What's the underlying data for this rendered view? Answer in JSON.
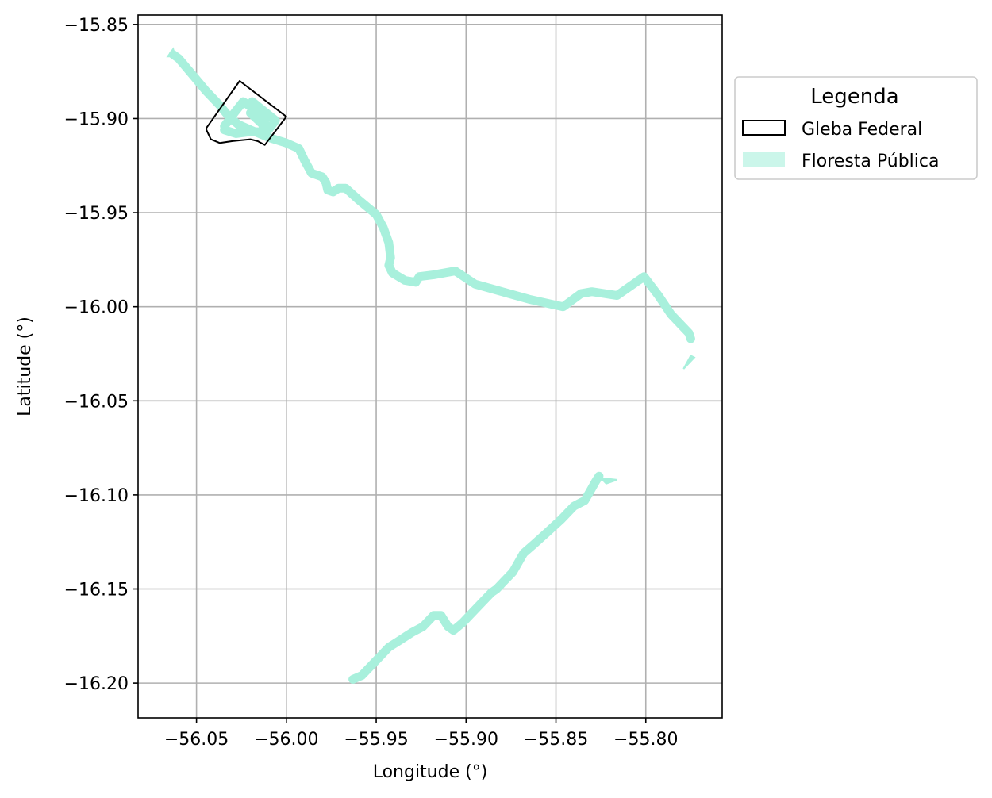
{
  "chart_data": {
    "type": "map",
    "xlabel": "Longitude (°)",
    "ylabel": "Latitude (°)",
    "xlim": [
      -56.0825,
      -55.7575
    ],
    "ylim": [
      -16.2185,
      -15.845
    ],
    "xticks": [
      -56.05,
      -56.0,
      -55.95,
      -55.9,
      -55.85,
      -55.8
    ],
    "yticks": [
      -15.85,
      -15.9,
      -15.95,
      -16.0,
      -16.05,
      -16.1,
      -16.15,
      -16.2
    ],
    "grid": true,
    "legend": {
      "title": "Legenda",
      "placement": "outside-upper-right",
      "entries": [
        {
          "label": "Gleba Federal",
          "style": "polygon-outline",
          "color": "#000000"
        },
        {
          "label": "Floresta Pública",
          "style": "fill",
          "color": "#a8f0dc"
        }
      ]
    },
    "layers": [
      {
        "name": "Gleba Federal",
        "kind": "polygon",
        "stroke": "#000000",
        "coordinates": [
          [
            -56.026,
            -15.88
          ],
          [
            -56.0,
            -15.899
          ],
          [
            -56.012,
            -15.914
          ],
          [
            -56.016,
            -15.912
          ],
          [
            -56.02,
            -15.911
          ],
          [
            -56.03,
            -15.912
          ],
          [
            -56.037,
            -15.913
          ],
          [
            -56.042,
            -15.911
          ],
          [
            -56.0445,
            -15.906
          ],
          [
            -56.0445,
            -15.905
          ]
        ]
      },
      {
        "name": "Floresta Pública",
        "kind": "line-polygons",
        "color": "#a8f0dc",
        "segments": [
          [
            [
              -56.063,
              -15.866
            ],
            [
              -56.06,
              -15.868
            ],
            [
              -56.052,
              -15.877
            ],
            [
              -56.045,
              -15.885
            ],
            [
              -56.037,
              -15.893
            ],
            [
              -56.032,
              -15.899
            ],
            [
              -56.027,
              -15.903
            ],
            [
              -56.02,
              -15.906
            ],
            [
              -56.01,
              -15.91
            ],
            [
              -56.0,
              -15.913
            ],
            [
              -55.993,
              -15.916
            ],
            [
              -55.99,
              -15.922
            ],
            [
              -55.986,
              -15.929
            ],
            [
              -55.98,
              -15.931
            ],
            [
              -55.978,
              -15.934
            ],
            [
              -55.977,
              -15.938
            ],
            [
              -55.974,
              -15.939
            ],
            [
              -55.971,
              -15.937
            ],
            [
              -55.967,
              -15.937
            ],
            [
              -55.96,
              -15.943
            ],
            [
              -55.95,
              -15.951
            ],
            [
              -55.946,
              -15.958
            ],
            [
              -55.943,
              -15.966
            ],
            [
              -55.942,
              -15.974
            ],
            [
              -55.943,
              -15.978
            ],
            [
              -55.941,
              -15.982
            ],
            [
              -55.934,
              -15.986
            ],
            [
              -55.928,
              -15.987
            ],
            [
              -55.926,
              -15.984
            ],
            [
              -55.918,
              -15.983
            ],
            [
              -55.906,
              -15.981
            ],
            [
              -55.895,
              -15.988
            ],
            [
              -55.88,
              -15.992
            ],
            [
              -55.865,
              -15.996
            ],
            [
              -55.851,
              -15.999
            ],
            [
              -55.846,
              -16.0
            ],
            [
              -55.836,
              -15.993
            ],
            [
              -55.83,
              -15.992
            ],
            [
              -55.816,
              -15.994
            ],
            [
              -55.801,
              -15.984
            ],
            [
              -55.793,
              -15.994
            ],
            [
              -55.786,
              -16.004
            ],
            [
              -55.776,
              -16.014
            ],
            [
              -55.775,
              -16.017
            ]
          ],
          [
            [
              -56.0345,
              -15.904
            ],
            [
              -56.029,
              -15.897
            ],
            [
              -56.024,
              -15.891
            ],
            [
              -56.018,
              -15.895
            ],
            [
              -56.012,
              -15.901
            ],
            [
              -56.0135,
              -15.907
            ],
            [
              -56.02,
              -15.907
            ],
            [
              -56.028,
              -15.908
            ],
            [
              -56.0345,
              -15.906
            ]
          ],
          [
            [
              -56.019,
              -15.891
            ],
            [
              -56.006,
              -15.901
            ],
            [
              -56.01,
              -15.906
            ],
            [
              -56.02,
              -15.897
            ]
          ],
          [
            [
              -55.963,
              -16.198
            ],
            [
              -55.958,
              -16.196
            ],
            [
              -55.95,
              -16.188
            ],
            [
              -55.943,
              -16.181
            ],
            [
              -55.938,
              -16.178
            ],
            [
              -55.93,
              -16.173
            ],
            [
              -55.924,
              -16.17
            ],
            [
              -55.918,
              -16.164
            ],
            [
              -55.914,
              -16.164
            ],
            [
              -55.91,
              -16.17
            ],
            [
              -55.907,
              -16.172
            ],
            [
              -55.902,
              -16.168
            ],
            [
              -55.897,
              -16.163
            ],
            [
              -55.891,
              -16.157
            ],
            [
              -55.886,
              -16.152
            ],
            [
              -55.883,
              -16.15
            ],
            [
              -55.879,
              -16.146
            ],
            [
              -55.874,
              -16.141
            ],
            [
              -55.868,
              -16.131
            ],
            [
              -55.862,
              -16.126
            ],
            [
              -55.855,
              -16.12
            ],
            [
              -55.847,
              -16.113
            ],
            [
              -55.84,
              -16.106
            ],
            [
              -55.834,
              -16.103
            ],
            [
              -55.831,
              -16.098
            ],
            [
              -55.828,
              -16.093
            ],
            [
              -55.826,
              -16.09
            ]
          ]
        ],
        "fragments": [
          [
            [
              -56.066,
              -15.867
            ],
            [
              -56.063,
              -15.863
            ],
            [
              -56.062,
              -15.867
            ]
          ],
          [
            [
              -55.779,
              -16.033
            ],
            [
              -55.775,
              -16.026
            ],
            [
              -55.773,
              -16.027
            ]
          ],
          [
            [
              -55.825,
              -16.091
            ],
            [
              -55.816,
              -16.092
            ],
            [
              -55.822,
              -16.094
            ]
          ]
        ]
      }
    ]
  }
}
